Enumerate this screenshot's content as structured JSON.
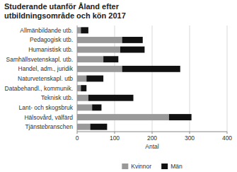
{
  "chart_data": {
    "type": "bar",
    "orientation": "horizontal",
    "stacked": true,
    "title": "Studerande utanför Åland efter\nutbildningsområde och kön 2017",
    "categories": [
      "Allmänbildande utb.",
      "Pedagogisk utb.",
      "Humanistisk utb.",
      "Samhällsvetenskapl. utb.",
      "Handel, adm., juridik",
      "Naturvetenskapl. utb",
      "Databehandl., kommunik.",
      "Teknisk utb.",
      "Lant- och skogsbruk",
      "Hälsovård, välfärd",
      "Tjänstebranschen"
    ],
    "series": [
      {
        "name": "Kvinnor",
        "color": "#999999",
        "values": [
          10,
          120,
          115,
          70,
          120,
          25,
          10,
          30,
          40,
          245,
          35
        ]
      },
      {
        "name": "Män",
        "color": "#111111",
        "values": [
          20,
          55,
          65,
          40,
          155,
          45,
          15,
          120,
          25,
          60,
          45
        ]
      }
    ],
    "xlabel": "Antal",
    "xlim": [
      0,
      400
    ],
    "xticks": [
      0,
      100,
      200,
      300,
      400
    ],
    "grid": true,
    "legend": "bottom"
  }
}
